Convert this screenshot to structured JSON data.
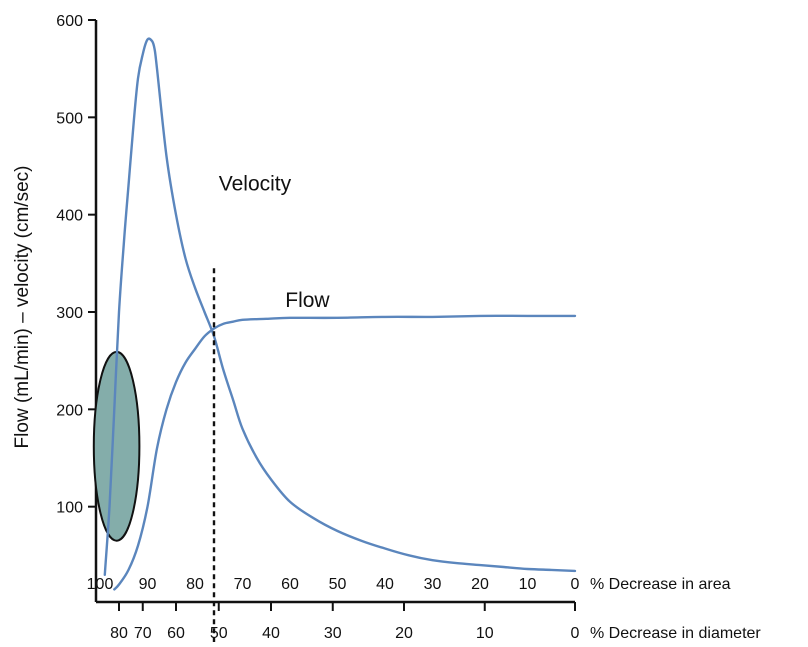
{
  "chart_data": {
    "type": "line",
    "ylabel": "Flow (mL/min) – velocity (cm/sec)",
    "ylim": [
      0,
      600
    ],
    "y_ticks": [
      100,
      200,
      300,
      400,
      500,
      600
    ],
    "x_axes": [
      {
        "name": "area",
        "label": "% Decrease in area",
        "ticks": [
          "100",
          "90",
          "80",
          "70",
          "60",
          "50",
          "40",
          "30",
          "20",
          "10",
          "0"
        ]
      },
      {
        "name": "diameter",
        "label": "% Decrease in diameter",
        "ticks": [
          "80",
          "70",
          "60",
          "50",
          "40",
          "30",
          "20",
          "10",
          "0"
        ],
        "tick_area_equivalents": [
          96,
          91,
          84,
          75,
          64,
          51,
          36,
          19,
          0
        ]
      }
    ],
    "x_unit": "% decrease in area",
    "x_range": [
      100,
      0
    ],
    "series": [
      {
        "name": "Velocity",
        "color": "#5b86bd",
        "points": [
          [
            99,
            30
          ],
          [
            98,
            100
          ],
          [
            97,
            200
          ],
          [
            96,
            300
          ],
          [
            95,
            370
          ],
          [
            94,
            430
          ],
          [
            93,
            490
          ],
          [
            92,
            540
          ],
          [
            91,
            565
          ],
          [
            90,
            580
          ],
          [
            89,
            578
          ],
          [
            88.5,
            570
          ],
          [
            88,
            550
          ],
          [
            86,
            460
          ],
          [
            84,
            400
          ],
          [
            82,
            355
          ],
          [
            80,
            325
          ],
          [
            78,
            300
          ],
          [
            76,
            275
          ],
          [
            74,
            240
          ],
          [
            72,
            210
          ],
          [
            70,
            180
          ],
          [
            67,
            150
          ],
          [
            64,
            128
          ],
          [
            60,
            105
          ],
          [
            55,
            88
          ],
          [
            50,
            75
          ],
          [
            45,
            65
          ],
          [
            40,
            57
          ],
          [
            35,
            50
          ],
          [
            30,
            45
          ],
          [
            25,
            42
          ],
          [
            20,
            40
          ],
          [
            15,
            38
          ],
          [
            10,
            36
          ],
          [
            5,
            35
          ],
          [
            0,
            34
          ]
        ]
      },
      {
        "name": "Flow",
        "color": "#5b86bd",
        "points": [
          [
            97,
            15
          ],
          [
            96,
            20
          ],
          [
            94,
            35
          ],
          [
            92,
            60
          ],
          [
            90,
            100
          ],
          [
            88,
            160
          ],
          [
            86,
            200
          ],
          [
            84,
            228
          ],
          [
            82,
            248
          ],
          [
            80,
            262
          ],
          [
            78,
            275
          ],
          [
            76,
            283
          ],
          [
            74,
            288
          ],
          [
            72,
            290
          ],
          [
            70,
            292
          ],
          [
            65,
            293
          ],
          [
            60,
            294
          ],
          [
            50,
            294
          ],
          [
            40,
            295
          ],
          [
            30,
            295
          ],
          [
            20,
            296
          ],
          [
            10,
            296
          ],
          [
            0,
            296
          ]
        ]
      }
    ],
    "markers": [
      {
        "kind": "vertical-dashed",
        "x_area": 76,
        "y_range": [
          0,
          345
        ]
      }
    ],
    "region": {
      "kind": "ellipse",
      "x_area": 96.5,
      "y": 162,
      "rx_area": 4.8,
      "ry": 97,
      "fill": "#84adaa"
    },
    "annotations": [
      {
        "text": "Velocity",
        "x_area": 75,
        "y": 425
      },
      {
        "text": "Flow",
        "x_area": 61,
        "y": 305
      }
    ],
    "grid": false,
    "legend": "none"
  }
}
